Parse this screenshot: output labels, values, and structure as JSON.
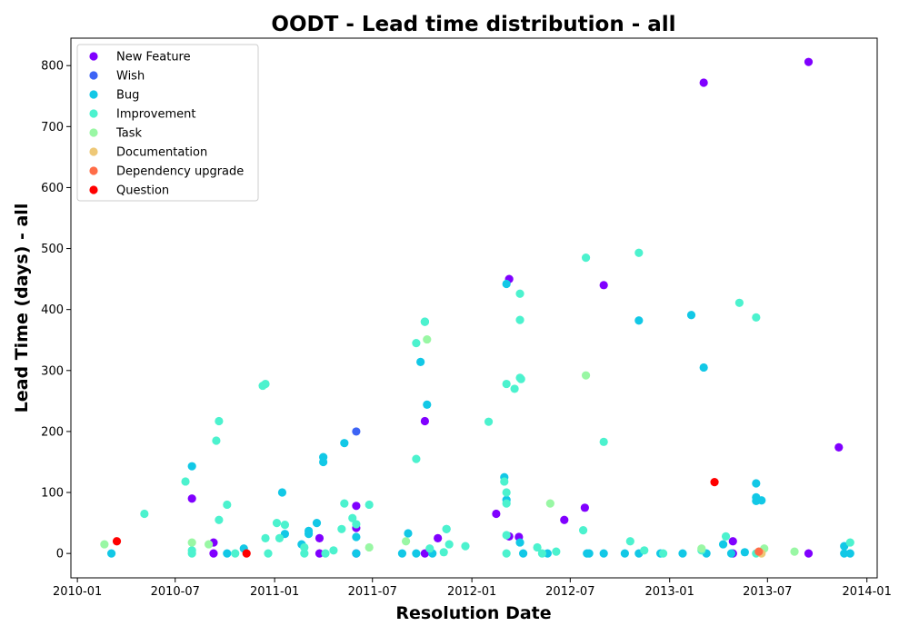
{
  "chart_data": {
    "type": "scatter",
    "title": "OODT - Lead time distribution - all",
    "xlabel": "Resolution Date",
    "ylabel": "Lead Time (days) - all",
    "x_ticks": [
      "2010-01",
      "2010-07",
      "2011-01",
      "2011-07",
      "2012-01",
      "2012-07",
      "2013-01",
      "2013-07",
      "2014-01"
    ],
    "y_ticks": [
      0,
      100,
      200,
      300,
      400,
      500,
      600,
      700,
      800
    ],
    "xlim": [
      "2009-12-20",
      "2014-01-20"
    ],
    "ylim": [
      -40,
      845
    ],
    "grid": false,
    "legend_position": "upper-left",
    "series": [
      {
        "name": "New Feature",
        "color": "#8000ff",
        "points": [
          [
            "2010-08-01",
            90
          ],
          [
            "2010-09-10",
            18
          ],
          [
            "2010-09-10",
            0
          ],
          [
            "2011-03-25",
            25
          ],
          [
            "2011-03-25",
            0
          ],
          [
            "2011-06-01",
            78
          ],
          [
            "2011-06-01",
            42
          ],
          [
            "2011-06-01",
            0
          ],
          [
            "2011-10-06",
            217
          ],
          [
            "2011-10-06",
            0
          ],
          [
            "2011-10-30",
            25
          ],
          [
            "2012-02-15",
            65
          ],
          [
            "2012-03-10",
            450
          ],
          [
            "2012-03-10",
            28
          ],
          [
            "2012-03-28",
            27
          ],
          [
            "2012-06-20",
            55
          ],
          [
            "2012-07-28",
            75
          ],
          [
            "2012-09-01",
            440
          ],
          [
            "2013-03-05",
            772
          ],
          [
            "2013-04-28",
            20
          ],
          [
            "2013-04-28",
            0
          ],
          [
            "2013-09-15",
            806
          ],
          [
            "2013-09-15",
            0
          ],
          [
            "2013-11-10",
            174
          ]
        ]
      },
      {
        "name": "Wish",
        "color": "#3d64f5",
        "points": [
          [
            "2011-06-01",
            200
          ]
        ]
      },
      {
        "name": "Bug",
        "color": "#12c8e6",
        "points": [
          [
            "2010-03-05",
            0
          ],
          [
            "2010-08-01",
            143
          ],
          [
            "2010-10-05",
            0
          ],
          [
            "2010-11-05",
            8
          ],
          [
            "2011-01-15",
            100
          ],
          [
            "2011-01-20",
            32
          ],
          [
            "2011-02-20",
            15
          ],
          [
            "2011-03-05",
            37
          ],
          [
            "2011-03-05",
            32
          ],
          [
            "2011-03-20",
            50
          ],
          [
            "2011-04-01",
            158
          ],
          [
            "2011-04-01",
            150
          ],
          [
            "2011-05-10",
            181
          ],
          [
            "2011-06-01",
            27
          ],
          [
            "2011-06-01",
            0
          ],
          [
            "2011-08-25",
            0
          ],
          [
            "2011-09-05",
            33
          ],
          [
            "2011-09-20",
            0
          ],
          [
            "2011-09-28",
            314
          ],
          [
            "2011-10-06",
            380
          ],
          [
            "2011-10-10",
            244
          ],
          [
            "2011-10-20",
            0
          ],
          [
            "2011-11-15",
            40
          ],
          [
            "2012-03-01",
            125
          ],
          [
            "2012-03-05",
            442
          ],
          [
            "2012-03-05",
            88
          ],
          [
            "2012-03-30",
            18
          ],
          [
            "2012-04-05",
            0
          ],
          [
            "2012-05-20",
            0
          ],
          [
            "2012-08-01",
            0
          ],
          [
            "2012-08-05",
            0
          ],
          [
            "2012-09-01",
            0
          ],
          [
            "2012-10-10",
            0
          ],
          [
            "2012-11-05",
            382
          ],
          [
            "2012-11-05",
            0
          ],
          [
            "2012-12-15",
            0
          ],
          [
            "2013-01-25",
            0
          ],
          [
            "2013-02-10",
            391
          ],
          [
            "2013-03-05",
            305
          ],
          [
            "2013-03-10",
            0
          ],
          [
            "2013-04-10",
            15
          ],
          [
            "2013-04-25",
            0
          ],
          [
            "2013-05-20",
            2
          ],
          [
            "2013-06-10",
            115
          ],
          [
            "2013-06-10",
            92
          ],
          [
            "2013-06-10",
            86
          ],
          [
            "2013-06-20",
            87
          ],
          [
            "2013-11-20",
            12
          ],
          [
            "2013-11-20",
            0
          ],
          [
            "2013-12-01",
            0
          ]
        ]
      },
      {
        "name": "Improvement",
        "color": "#4cf2ce",
        "points": [
          [
            "2010-05-05",
            65
          ],
          [
            "2010-07-20",
            118
          ],
          [
            "2010-08-01",
            5
          ],
          [
            "2010-08-01",
            0
          ],
          [
            "2010-09-15",
            185
          ],
          [
            "2010-09-20",
            217
          ],
          [
            "2010-09-20",
            55
          ],
          [
            "2010-10-05",
            80
          ],
          [
            "2010-10-20",
            0
          ],
          [
            "2010-12-10",
            275
          ],
          [
            "2010-12-15",
            278
          ],
          [
            "2010-12-15",
            25
          ],
          [
            "2010-12-20",
            0
          ],
          [
            "2011-01-05",
            50
          ],
          [
            "2011-01-10",
            25
          ],
          [
            "2011-01-20",
            47
          ],
          [
            "2011-02-25",
            10
          ],
          [
            "2011-02-25",
            0
          ],
          [
            "2011-04-05",
            0
          ],
          [
            "2011-04-20",
            5
          ],
          [
            "2011-05-05",
            40
          ],
          [
            "2011-05-10",
            82
          ],
          [
            "2011-05-25",
            58
          ],
          [
            "2011-06-01",
            48
          ],
          [
            "2011-06-25",
            80
          ],
          [
            "2011-09-20",
            345
          ],
          [
            "2011-09-20",
            155
          ],
          [
            "2011-10-06",
            380
          ],
          [
            "2011-10-15",
            8
          ],
          [
            "2011-11-10",
            2
          ],
          [
            "2011-11-15",
            40
          ],
          [
            "2011-11-20",
            15
          ],
          [
            "2011-12-20",
            12
          ],
          [
            "2012-02-01",
            216
          ],
          [
            "2012-03-01",
            118
          ],
          [
            "2012-03-05",
            100
          ],
          [
            "2012-03-05",
            82
          ],
          [
            "2012-03-05",
            30
          ],
          [
            "2012-03-05",
            278
          ],
          [
            "2012-03-05",
            0
          ],
          [
            "2012-03-20",
            270
          ],
          [
            "2012-03-30",
            426
          ],
          [
            "2012-03-30",
            383
          ],
          [
            "2012-03-30",
            288
          ],
          [
            "2012-04-01",
            286
          ],
          [
            "2012-05-01",
            10
          ],
          [
            "2012-05-10",
            0
          ],
          [
            "2012-06-05",
            3
          ],
          [
            "2012-07-25",
            38
          ],
          [
            "2012-07-30",
            485
          ],
          [
            "2012-09-01",
            183
          ],
          [
            "2012-10-20",
            20
          ],
          [
            "2012-11-05",
            493
          ],
          [
            "2012-11-15",
            5
          ],
          [
            "2012-12-20",
            0
          ],
          [
            "2013-03-01",
            5
          ],
          [
            "2013-04-15",
            28
          ],
          [
            "2013-05-10",
            411
          ],
          [
            "2013-06-10",
            387
          ],
          [
            "2013-06-10",
            0
          ],
          [
            "2013-12-01",
            18
          ]
        ]
      },
      {
        "name": "Task",
        "color": "#99f7a4",
        "points": [
          [
            "2010-02-20",
            15
          ],
          [
            "2010-08-01",
            18
          ],
          [
            "2010-09-01",
            15
          ],
          [
            "2011-06-25",
            10
          ],
          [
            "2011-09-01",
            20
          ],
          [
            "2011-10-10",
            351
          ],
          [
            "2012-05-25",
            82
          ],
          [
            "2012-07-30",
            292
          ],
          [
            "2013-03-01",
            8
          ],
          [
            "2013-06-25",
            8
          ],
          [
            "2013-08-20",
            3
          ]
        ]
      },
      {
        "name": "Documentation",
        "color": "#eec877",
        "points": [
          [
            "2013-06-20",
            0
          ]
        ]
      },
      {
        "name": "Dependency upgrade",
        "color": "#ff6d48",
        "points": [
          [
            "2013-06-15",
            3
          ]
        ]
      },
      {
        "name": "Question",
        "color": "#ff0000",
        "points": [
          [
            "2010-03-15",
            20
          ],
          [
            "2010-11-10",
            0
          ],
          [
            "2013-03-25",
            117
          ]
        ]
      }
    ]
  }
}
